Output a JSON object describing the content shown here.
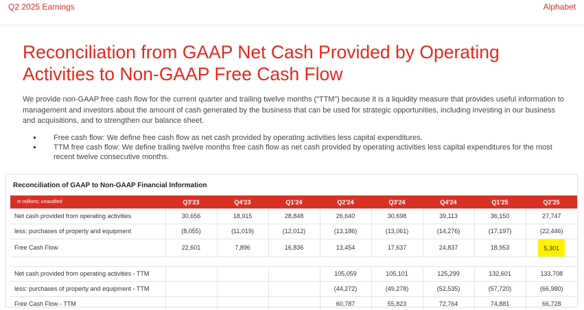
{
  "header": {
    "left": "Q2 2025 Earnings",
    "right": "Alphabet"
  },
  "title": "Reconciliation from GAAP Net Cash Provided by Operating Activities to Non-GAAP Free Cash Flow",
  "intro": "We provide non-GAAP free cash flow for the current quarter and trailing twelve months (“TTM”) because it is a liquidity measure that provides useful information to management and investors about the amount of cash generated by the business that can be used for strategic opportunities, including investing in our business and acquisitions, and to strengthen our balance sheet.",
  "bullets": [
    "Free cash flow: We define free cash flow as net cash provided by operating activities less capital expenditures.",
    "TTM free cash flow: We define trailing twelve months free cash flow as net cash provided by operating activities less capital expenditures for the most recent twelve consecutive months."
  ],
  "table": {
    "title": "Reconciliation of GAAP to Non-GAAP Financial Information",
    "unit_label": "in millions; unaudited",
    "columns": [
      "Q3'23",
      "Q4'23",
      "Q1'24",
      "Q2'24",
      "Q3'24",
      "Q4'24",
      "Q1'25",
      "Q2'25"
    ],
    "quarterly_rows": [
      {
        "label": "Net cash provided from operating activities",
        "values": [
          "30,656",
          "18,915",
          "28,848",
          "26,640",
          "30,698",
          "39,113",
          "36,150",
          "27,747"
        ]
      },
      {
        "label": "less: purchases of property and equipment",
        "values": [
          "(8,055)",
          "(11,019)",
          "(12,012)",
          "(13,186)",
          "(13,061)",
          "(14,276)",
          "(17,197)",
          "(22,446)"
        ]
      },
      {
        "label": "Free Cash Flow",
        "values": [
          "22,601",
          "7,896",
          "16,836",
          "13,454",
          "17,637",
          "24,837",
          "18,953",
          "5,301"
        ]
      }
    ],
    "ttm_rows": [
      {
        "label": "Net cash provided from operating activities - TTM",
        "values": [
          "",
          "",
          "",
          "105,059",
          "105,101",
          "125,299",
          "132,601",
          "133,708"
        ]
      },
      {
        "label": "less: purchases of property and equipment - TTM",
        "values": [
          "",
          "",
          "",
          "(44,272)",
          "(49,278)",
          "(52,535)",
          "(57,720)",
          "(66,980)"
        ]
      },
      {
        "label": "Free Cash Flow - TTM",
        "values": [
          "",
          "",
          "",
          "60,787",
          "55,823",
          "72,764",
          "74,881",
          "66,728"
        ]
      }
    ],
    "highlight_color": "#fff200"
  }
}
